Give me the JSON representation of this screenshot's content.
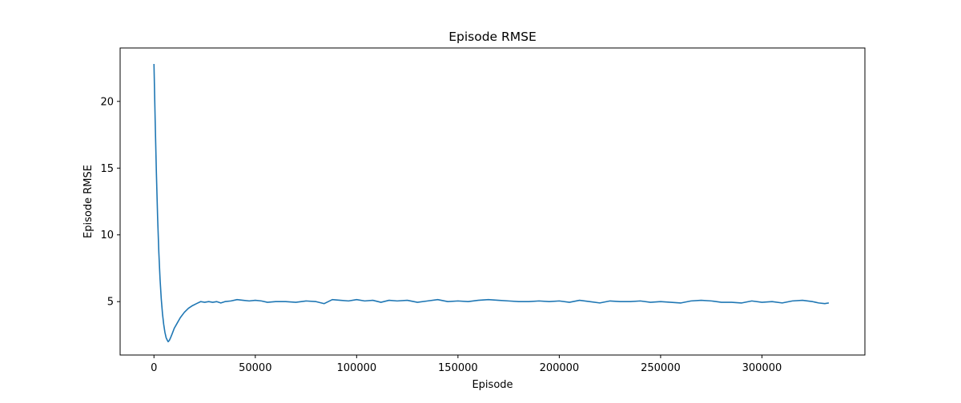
{
  "chart_data": {
    "type": "line",
    "title": "Episode RMSE",
    "xlabel": "Episode",
    "ylabel": "Episode RMSE",
    "xlim": [
      -16700,
      350800
    ],
    "ylim": [
      1.0,
      24.0
    ],
    "xticks": [
      0,
      50000,
      100000,
      150000,
      200000,
      250000,
      300000
    ],
    "yticks": [
      5,
      10,
      15,
      20
    ],
    "grid": false,
    "legend": "none",
    "color": "#1f77b4",
    "series": [
      {
        "points": [
          [
            0,
            22.8
          ],
          [
            600,
            18.5
          ],
          [
            1200,
            14.6
          ],
          [
            1800,
            11.3
          ],
          [
            2400,
            8.7
          ],
          [
            3000,
            6.7
          ],
          [
            3600,
            5.2
          ],
          [
            4200,
            4.1
          ],
          [
            4800,
            3.3
          ],
          [
            5400,
            2.7
          ],
          [
            6000,
            2.3
          ],
          [
            6600,
            2.1
          ],
          [
            7000,
            2.0
          ],
          [
            7600,
            2.1
          ],
          [
            8200,
            2.3
          ],
          [
            9000,
            2.6
          ],
          [
            10000,
            3.0
          ],
          [
            11500,
            3.4
          ],
          [
            13000,
            3.8
          ],
          [
            15000,
            4.2
          ],
          [
            17000,
            4.5
          ],
          [
            19000,
            4.7
          ],
          [
            21000,
            4.85
          ],
          [
            23000,
            5.0
          ],
          [
            25000,
            4.95
          ],
          [
            27000,
            5.0
          ],
          [
            29000,
            4.95
          ],
          [
            31000,
            5.0
          ],
          [
            33000,
            4.9
          ],
          [
            35000,
            5.0
          ],
          [
            38000,
            5.05
          ],
          [
            41000,
            5.15
          ],
          [
            44000,
            5.1
          ],
          [
            47000,
            5.05
          ],
          [
            50000,
            5.1
          ],
          [
            53000,
            5.05
          ],
          [
            56000,
            4.95
          ],
          [
            60000,
            5.0
          ],
          [
            65000,
            5.0
          ],
          [
            70000,
            4.95
          ],
          [
            75000,
            5.05
          ],
          [
            80000,
            5.0
          ],
          [
            84000,
            4.85
          ],
          [
            88000,
            5.15
          ],
          [
            92000,
            5.1
          ],
          [
            96000,
            5.05
          ],
          [
            100000,
            5.15
          ],
          [
            104000,
            5.05
          ],
          [
            108000,
            5.1
          ],
          [
            112000,
            4.95
          ],
          [
            116000,
            5.1
          ],
          [
            120000,
            5.05
          ],
          [
            125000,
            5.1
          ],
          [
            130000,
            4.95
          ],
          [
            135000,
            5.05
          ],
          [
            140000,
            5.15
          ],
          [
            145000,
            5.0
          ],
          [
            150000,
            5.05
          ],
          [
            155000,
            5.0
          ],
          [
            160000,
            5.1
          ],
          [
            165000,
            5.15
          ],
          [
            170000,
            5.1
          ],
          [
            175000,
            5.05
          ],
          [
            180000,
            5.0
          ],
          [
            185000,
            5.0
          ],
          [
            190000,
            5.05
          ],
          [
            195000,
            5.0
          ],
          [
            200000,
            5.05
          ],
          [
            205000,
            4.95
          ],
          [
            210000,
            5.1
          ],
          [
            215000,
            5.0
          ],
          [
            220000,
            4.9
          ],
          [
            225000,
            5.05
          ],
          [
            230000,
            5.0
          ],
          [
            235000,
            5.0
          ],
          [
            240000,
            5.05
          ],
          [
            245000,
            4.95
          ],
          [
            250000,
            5.0
          ],
          [
            255000,
            4.95
          ],
          [
            260000,
            4.9
          ],
          [
            265000,
            5.05
          ],
          [
            270000,
            5.1
          ],
          [
            275000,
            5.05
          ],
          [
            280000,
            4.95
          ],
          [
            285000,
            4.95
          ],
          [
            290000,
            4.9
          ],
          [
            295000,
            5.05
          ],
          [
            300000,
            4.95
          ],
          [
            305000,
            5.0
          ],
          [
            310000,
            4.9
          ],
          [
            315000,
            5.05
          ],
          [
            320000,
            5.1
          ],
          [
            325000,
            5.0
          ],
          [
            328000,
            4.9
          ],
          [
            331000,
            4.85
          ],
          [
            333000,
            4.9
          ]
        ]
      }
    ]
  }
}
